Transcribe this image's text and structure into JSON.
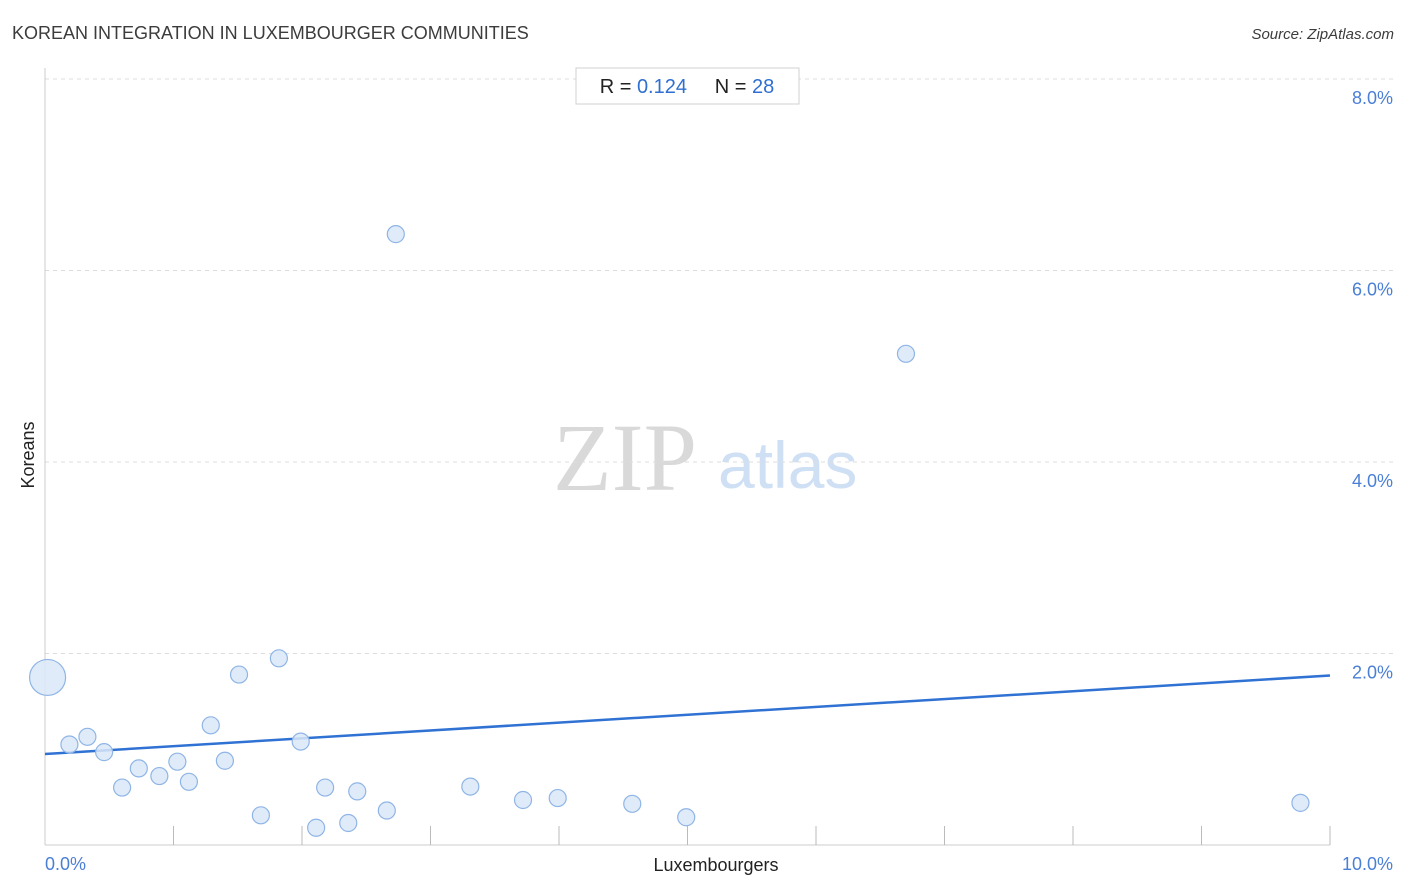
{
  "chart_data": {
    "type": "scatter",
    "title": "KOREAN INTEGRATION IN LUXEMBOURGER COMMUNITIES",
    "source": "Source: ZipAtlas.com",
    "xlabel": "Luxembourgers",
    "ylabel": "Koreans",
    "xlim": [
      0,
      10
    ],
    "ylim": [
      0,
      8
    ],
    "x_tick_labels": [
      "0.0%",
      "10.0%"
    ],
    "y_tick_labels": [
      "2.0%",
      "4.0%",
      "6.0%",
      "8.0%"
    ],
    "y_ticks": [
      2,
      4,
      6,
      8
    ],
    "x_minor_ticks": [
      1,
      2,
      3,
      4,
      5,
      6,
      7,
      8,
      9,
      10
    ],
    "grid": true,
    "stats": {
      "r_label": "R =",
      "r_value": "0.124",
      "n_label": "N =",
      "n_value": "28"
    },
    "trendline": {
      "x": [
        0,
        10
      ],
      "y": [
        0.95,
        1.77
      ]
    },
    "points": [
      {
        "x": 0.02,
        "y": 1.75,
        "size": "large"
      },
      {
        "x": 0.19,
        "y": 1.05,
        "size": "small"
      },
      {
        "x": 0.33,
        "y": 1.13,
        "size": "small"
      },
      {
        "x": 0.46,
        "y": 0.97,
        "size": "small"
      },
      {
        "x": 0.6,
        "y": 0.6,
        "size": "small"
      },
      {
        "x": 0.73,
        "y": 0.8,
        "size": "small"
      },
      {
        "x": 0.89,
        "y": 0.72,
        "size": "small"
      },
      {
        "x": 1.03,
        "y": 0.87,
        "size": "small"
      },
      {
        "x": 1.12,
        "y": 0.66,
        "size": "small"
      },
      {
        "x": 1.29,
        "y": 1.25,
        "size": "small"
      },
      {
        "x": 1.4,
        "y": 0.88,
        "size": "small"
      },
      {
        "x": 1.51,
        "y": 1.78,
        "size": "small"
      },
      {
        "x": 1.68,
        "y": 0.31,
        "size": "small"
      },
      {
        "x": 1.82,
        "y": 1.95,
        "size": "small"
      },
      {
        "x": 1.99,
        "y": 1.08,
        "size": "small"
      },
      {
        "x": 2.11,
        "y": 0.18,
        "size": "small"
      },
      {
        "x": 2.18,
        "y": 0.6,
        "size": "small"
      },
      {
        "x": 2.36,
        "y": 0.23,
        "size": "small"
      },
      {
        "x": 2.43,
        "y": 0.56,
        "size": "small"
      },
      {
        "x": 2.66,
        "y": 0.36,
        "size": "small"
      },
      {
        "x": 2.73,
        "y": 6.38,
        "size": "small"
      },
      {
        "x": 3.31,
        "y": 0.61,
        "size": "small"
      },
      {
        "x": 3.72,
        "y": 0.47,
        "size": "small"
      },
      {
        "x": 3.99,
        "y": 0.49,
        "size": "small"
      },
      {
        "x": 4.57,
        "y": 0.43,
        "size": "small"
      },
      {
        "x": 4.99,
        "y": 0.29,
        "size": "small"
      },
      {
        "x": 6.7,
        "y": 5.13,
        "size": "small"
      },
      {
        "x": 9.77,
        "y": 0.44,
        "size": "small"
      }
    ]
  },
  "watermark": {
    "zip": "ZIP",
    "atlas": "atlas"
  },
  "colors": {
    "point_fill": "#dbe8f8",
    "point_stroke": "#8fb5e6",
    "trend": "#2f72d3",
    "grid": "#dddddd",
    "axis": "#cccccc",
    "tick_text": "#4a7fd6"
  }
}
